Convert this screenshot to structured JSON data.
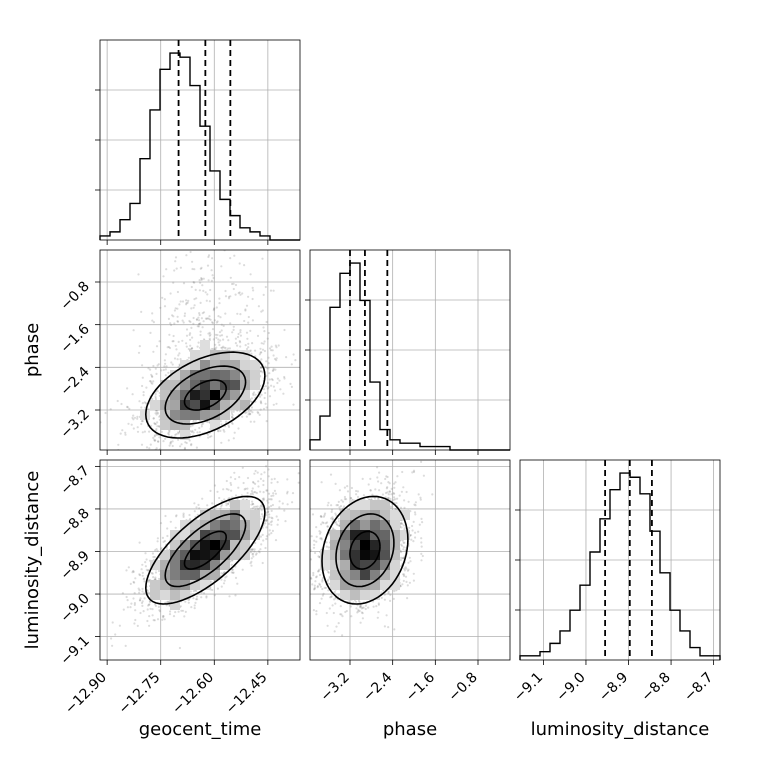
{
  "chart_data": {
    "type": "corner",
    "parameters": [
      "geocent_time",
      "phase",
      "luminosity_distance"
    ],
    "xlabels": [
      "geocent_time",
      "phase",
      "luminosity_distance"
    ],
    "ylabels": [
      "",
      "phase",
      "luminosity_distance"
    ],
    "grid": true,
    "ranges": {
      "geocent_time": [
        -12.92,
        -12.36
      ],
      "phase": [
        -3.95,
        -0.2
      ],
      "luminosity_distance": [
        -9.155,
        -8.685
      ]
    },
    "ticks": {
      "geocent_time": {
        "values": [
          -12.9,
          -12.75,
          -12.6,
          -12.45
        ],
        "labels": [
          "−12.90",
          "−12.75",
          "−12.60",
          "−12.45"
        ]
      },
      "phase": {
        "values": [
          -3.2,
          -2.4,
          -1.6,
          -0.8
        ],
        "labels": [
          "−3.2",
          "−2.4",
          "−1.6",
          "−0.8"
        ]
      },
      "luminosity_distance": {
        "values": [
          -9.1,
          -9.0,
          -8.9,
          -8.8,
          -8.7
        ],
        "labels": [
          "−9.1",
          "−9.0",
          "−8.9",
          "−8.8",
          "−8.7"
        ]
      }
    },
    "quantiles": {
      "geocent_time": [
        -12.7,
        -12.625,
        -12.555
      ],
      "phase": [
        -3.2,
        -2.92,
        -2.5
      ],
      "luminosity_distance": [
        -8.955,
        -8.897,
        -8.845
      ]
    },
    "histograms": {
      "geocent_time": [
        1,
        2,
        5,
        9,
        20,
        32,
        42,
        46,
        45,
        38,
        28,
        17,
        10,
        6,
        3,
        2,
        1,
        0,
        0,
        0
      ],
      "phase": [
        3,
        10,
        42,
        52,
        55,
        44,
        20,
        6,
        3,
        2,
        2,
        1,
        1,
        1,
        0,
        0,
        0,
        0,
        0,
        0
      ],
      "luminosity_distance": [
        1,
        1,
        2,
        4,
        7,
        12,
        18,
        26,
        34,
        41,
        45,
        44,
        40,
        31,
        21,
        12,
        7,
        3,
        1,
        1
      ]
    },
    "correlations": {
      "geocent_time|phase": 0.45,
      "geocent_time|luminosity_distance": 0.7,
      "phase|luminosity_distance": 0.2
    }
  }
}
